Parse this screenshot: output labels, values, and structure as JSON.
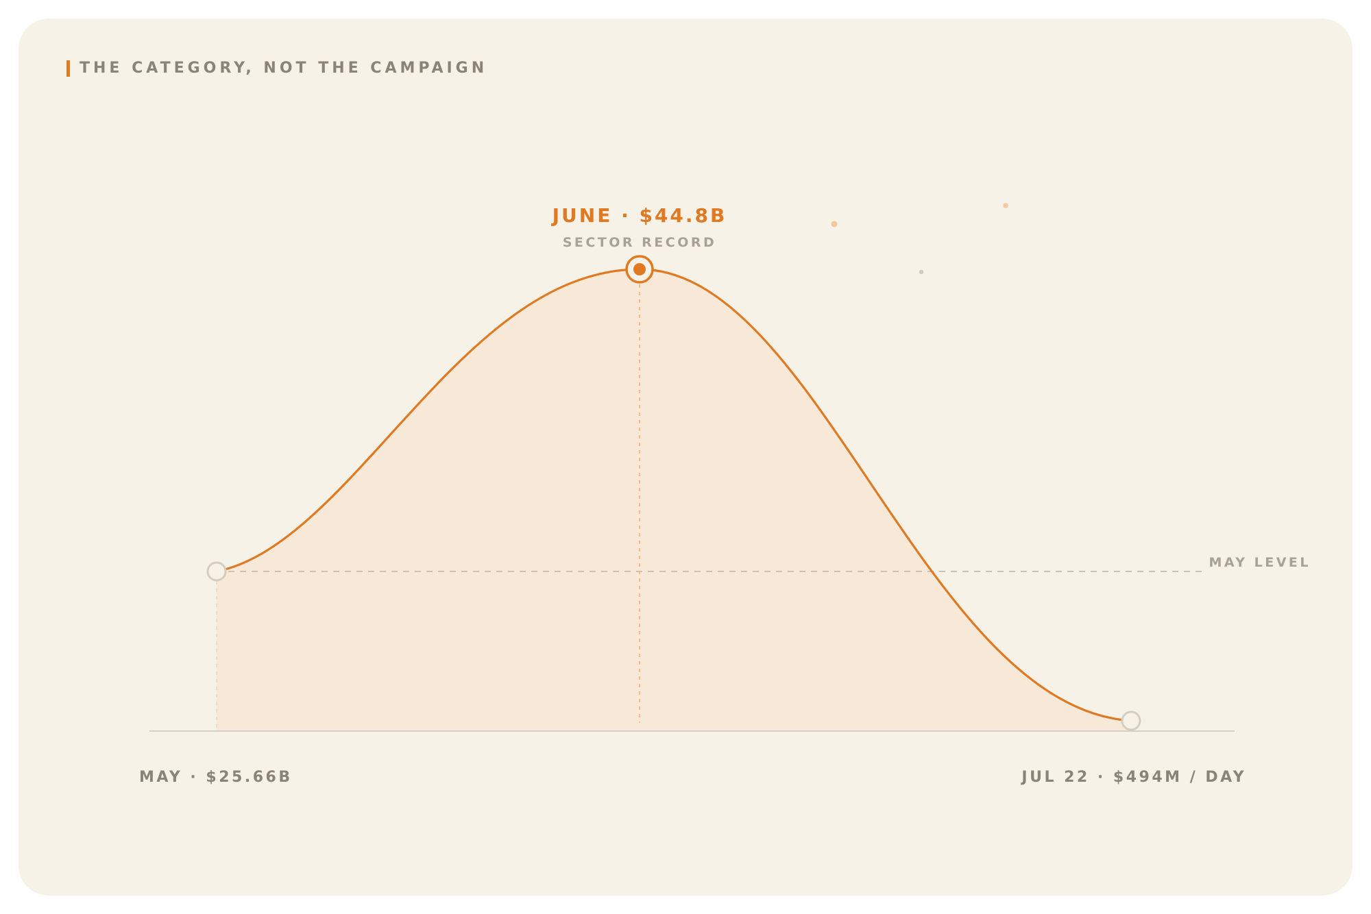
{
  "header": {
    "kicker": "THE CATEGORY, NOT THE CAMPAIGN"
  },
  "chart_data": {
    "type": "line",
    "title": "",
    "xlabel": "",
    "ylabel": "",
    "grid": false,
    "legend": "none",
    "points": [
      {
        "x": "May",
        "value": 25.66,
        "label": "MAY · $25.66B"
      },
      {
        "x": "June",
        "value": 44.8,
        "label": "JUNE · $44.8B",
        "sublabel": "SECTOR RECORD"
      },
      {
        "x": "Jul 22",
        "value": 16.2,
        "label": "JUL 22 · $494M / DAY"
      }
    ],
    "reference_line": {
      "value": 25.66,
      "label": "MAY LEVEL"
    },
    "ylim": [
      13.8,
      52
    ]
  },
  "colors": {
    "accent": "#e07a22",
    "card": "#f7f2e8",
    "muted": "#8a8478",
    "faint": "#c9c2b5",
    "fill": "#f7e8d8"
  }
}
